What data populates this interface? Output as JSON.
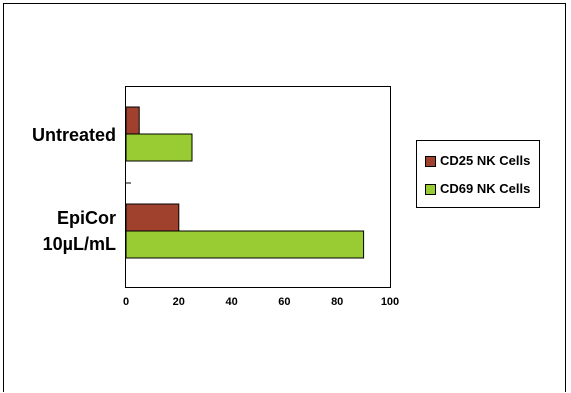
{
  "chart_data": {
    "type": "bar",
    "orientation": "horizontal",
    "categories": [
      "Untreated",
      "EpiCor\n10µL/mL"
    ],
    "category_lines": [
      [
        "Untreated"
      ],
      [
        "EpiCor",
        "10µL/mL"
      ]
    ],
    "series": [
      {
        "name": "CD25 NK Cells",
        "values": [
          5,
          20
        ],
        "color": "#a0412d"
      },
      {
        "name": "CD69 NK Cells",
        "values": [
          25,
          90
        ],
        "color": "#99cc33"
      }
    ],
    "xlim": [
      0,
      100
    ],
    "xticks": [
      "0",
      "20",
      "40",
      "60",
      "80",
      "100"
    ],
    "legend_position": "right",
    "grid": false
  }
}
